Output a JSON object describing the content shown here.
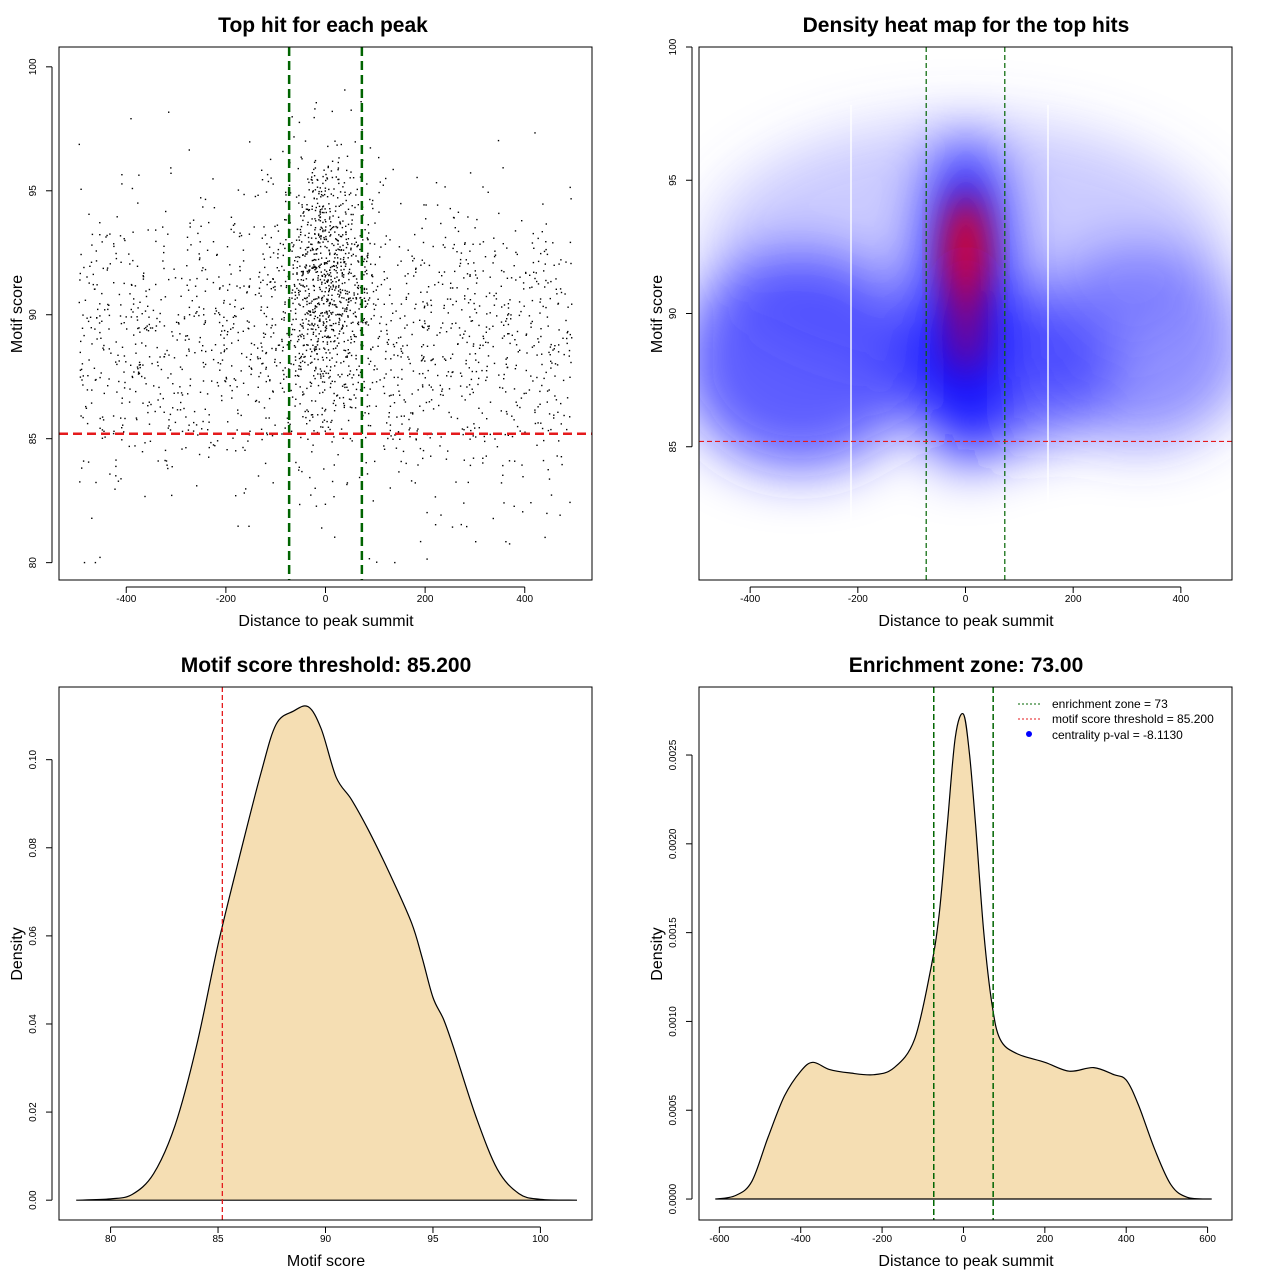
{
  "colors": {
    "zone_line": "#006400",
    "threshold_line": "#e41a1c",
    "fill": "#f5deb3",
    "heat_low": "#0000ff",
    "heat_high": "#ff0000"
  },
  "chart_data": [
    {
      "id": "scatter",
      "type": "scatter",
      "title": "Top hit for each peak",
      "xlabel": "Distance to peak summit",
      "ylabel": "Motif score",
      "xlim": [
        -535,
        535
      ],
      "ylim": [
        79.3,
        100.8
      ],
      "xticks": [
        -400,
        -200,
        0,
        200,
        400
      ],
      "yticks": [
        80,
        85,
        90,
        95,
        100
      ],
      "vlines": [
        -73,
        73
      ],
      "hline": 85.2,
      "point_description_approx": {
        "background": {
          "n": 1600,
          "x_range": [
            -495,
            495
          ],
          "score_mean": 88.7,
          "score_sd": 3.0
        },
        "central_cluster": {
          "n": 900,
          "x_mean": 0,
          "x_sd": 45,
          "score_mean": 91.5,
          "score_sd": 2.6
        }
      }
    },
    {
      "id": "heatmap",
      "type": "heatmap",
      "title": "Density heat map for the top hits",
      "xlabel": "Distance to peak summit",
      "ylabel": "Motif score",
      "xlim": [
        -495,
        495
      ],
      "ylim": [
        80,
        100
      ],
      "xticks": [
        -400,
        -200,
        0,
        200,
        400
      ],
      "yticks": [
        85,
        90,
        95,
        100
      ],
      "vlines": [
        -73,
        73
      ],
      "hline": 85.2,
      "peak": {
        "x": 0,
        "score": 92.5
      }
    },
    {
      "id": "score-density",
      "type": "area",
      "title": "Motif score threshold: 85.200",
      "xlabel": "Motif score",
      "ylabel": "Density",
      "xlim": [
        77.6,
        102.4
      ],
      "ylim": [
        -0.0045,
        0.1165
      ],
      "xticks": [
        80,
        85,
        90,
        95,
        100
      ],
      "yticks": [
        0.0,
        0.02,
        0.04,
        0.06,
        0.08,
        0.1
      ],
      "ytick_labels": [
        "0.00",
        "0.02",
        "0.04",
        "0.06",
        "0.08",
        "0.10"
      ],
      "vline": 85.2,
      "x": [
        78.4,
        80,
        81,
        82,
        83,
        84,
        85,
        86,
        87,
        87.7,
        88.5,
        89.2,
        89.8,
        90.5,
        91.2,
        92,
        93,
        94,
        94.5,
        95,
        95.5,
        96,
        97,
        98,
        99,
        100,
        101.7
      ],
      "y": [
        0.0,
        0.0003,
        0.0013,
        0.006,
        0.017,
        0.035,
        0.058,
        0.078,
        0.097,
        0.108,
        0.111,
        0.112,
        0.107,
        0.096,
        0.091,
        0.084,
        0.074,
        0.063,
        0.055,
        0.046,
        0.041,
        0.034,
        0.019,
        0.007,
        0.0015,
        0.0002,
        0.0
      ]
    },
    {
      "id": "distance-density",
      "type": "area",
      "title": "Enrichment zone: 73.00",
      "xlabel": "Distance to peak summit",
      "ylabel": "Density",
      "xlim": [
        -650,
        660
      ],
      "ylim": [
        -0.000118,
        0.002883
      ],
      "xticks": [
        -600,
        -400,
        -200,
        0,
        200,
        400,
        600
      ],
      "yticks": [
        0.0,
        0.0005,
        0.001,
        0.0015,
        0.002,
        0.0025
      ],
      "ytick_labels": [
        "0.0000",
        "0.0005",
        "0.0010",
        "0.0015",
        "0.0020",
        "0.0025"
      ],
      "vlines": [
        -73,
        73
      ],
      "x": [
        -610,
        -560,
        -520,
        -480,
        -440,
        -400,
        -370,
        -330,
        -280,
        -220,
        -170,
        -120,
        -80,
        -60,
        -40,
        -20,
        0,
        15,
        30,
        50,
        70,
        90,
        130,
        200,
        260,
        320,
        370,
        400,
        430,
        470,
        510,
        550,
        610
      ],
      "y": [
        0.0,
        2e-05,
        0.0001,
        0.00035,
        0.00058,
        0.00072,
        0.00077,
        0.00073,
        0.00071,
        0.0007,
        0.00074,
        0.0009,
        0.0013,
        0.0016,
        0.0021,
        0.0026,
        0.00273,
        0.0025,
        0.0021,
        0.0015,
        0.0011,
        0.0009,
        0.00082,
        0.00077,
        0.00072,
        0.00074,
        0.0007,
        0.00067,
        0.00053,
        0.00028,
        8e-05,
        1e-05,
        0.0
      ],
      "legend": [
        {
          "label": "enrichment zone = 73",
          "style": "zone"
        },
        {
          "label": "motif score threshold = 85.200",
          "style": "threshold"
        },
        {
          "label": "centrality p-val = -8.1130",
          "style": "point"
        }
      ]
    }
  ]
}
